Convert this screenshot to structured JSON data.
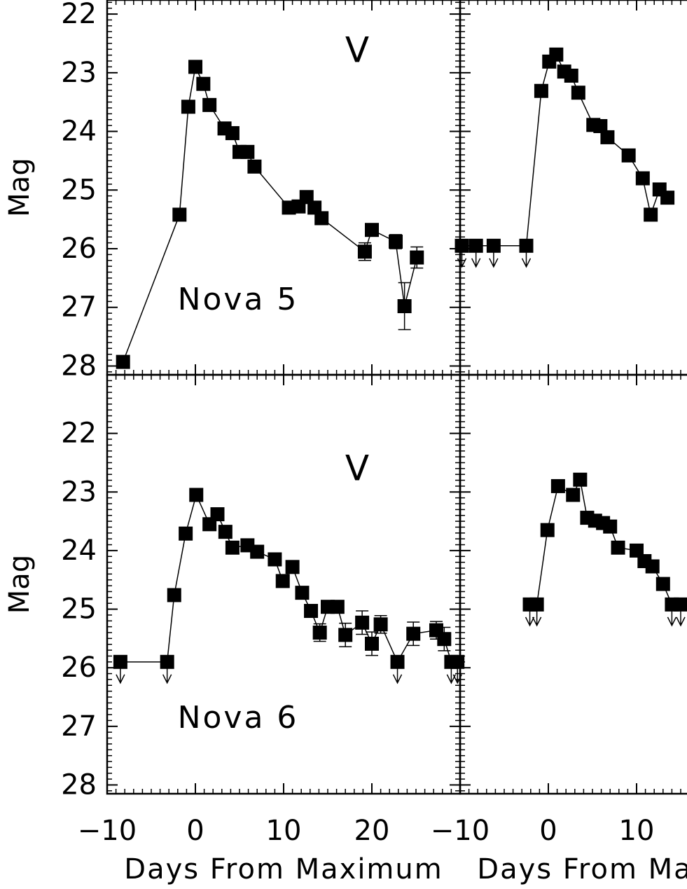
{
  "chart_data": [
    {
      "type": "line",
      "label": "Nova 5",
      "band": "V",
      "ylabel": "Mag",
      "color": "#000000",
      "x": [
        -8.2,
        -1.8,
        -0.8,
        0.0,
        0.9,
        1.6,
        3.3,
        4.2,
        5.0,
        5.9,
        6.7,
        10.6,
        11.7,
        12.6,
        13.5,
        14.3,
        19.2,
        20.0,
        22.7,
        23.7,
        25.1
      ],
      "values": [
        27.93,
        25.42,
        23.58,
        22.9,
        23.19,
        23.55,
        23.95,
        24.03,
        24.35,
        24.35,
        24.6,
        25.3,
        25.28,
        25.12,
        25.3,
        25.48,
        26.05,
        25.68,
        25.88,
        26.98,
        26.15
      ],
      "errors": [
        null,
        null,
        null,
        null,
        null,
        null,
        null,
        null,
        null,
        null,
        null,
        null,
        null,
        null,
        null,
        null,
        0.15,
        null,
        0.12,
        0.4,
        0.18
      ],
      "upper_limits": [
        false,
        false,
        false,
        false,
        false,
        false,
        false,
        false,
        false,
        false,
        false,
        false,
        false,
        false,
        false,
        false,
        false,
        false,
        false,
        false,
        false
      ],
      "xlim": [
        -10,
        30
      ],
      "ylim": [
        28.15,
        21.76
      ],
      "yticks": [
        22,
        23,
        24,
        25,
        26,
        27,
        28
      ],
      "xminor": 1,
      "yminor": 0.1
    },
    {
      "type": "line",
      "color": "#000000",
      "x": [
        -9.8,
        -8.2,
        -6.2,
        -2.5,
        -0.8,
        0.1,
        0.9,
        1.8,
        2.6,
        3.4,
        5.1,
        5.9,
        6.7,
        9.1,
        10.7,
        11.6,
        12.6,
        13.5
      ],
      "values": [
        25.95,
        25.95,
        25.95,
        25.95,
        23.31,
        22.81,
        22.69,
        22.98,
        23.05,
        23.34,
        23.89,
        23.91,
        24.1,
        24.41,
        24.8,
        25.42,
        24.99,
        25.13
      ],
      "errors": [
        null,
        null,
        null,
        null,
        null,
        null,
        null,
        null,
        null,
        null,
        null,
        null,
        null,
        null,
        null,
        null,
        null,
        null
      ],
      "upper_limits": [
        true,
        true,
        true,
        true,
        false,
        false,
        false,
        false,
        false,
        false,
        false,
        false,
        false,
        false,
        false,
        false,
        false,
        false
      ],
      "xlim": [
        -10,
        30
      ],
      "ylim": [
        28.15,
        21.76
      ],
      "xminor": 1,
      "yminor": 0.1
    },
    {
      "type": "line",
      "label": "Nova 6",
      "band": "V",
      "ylabel": "Mag",
      "xlabel": "Days From Maximum",
      "color": "#000000",
      "x": [
        -8.5,
        -3.2,
        -2.4,
        -1.1,
        0.1,
        1.6,
        2.5,
        3.4,
        4.2,
        5.9,
        7.0,
        9.0,
        9.9,
        11.0,
        12.1,
        13.1,
        14.1,
        15.0,
        16.1,
        17.0,
        18.9,
        20.0,
        21.0,
        22.9,
        24.7,
        27.3,
        28.2,
        29.0,
        29.7
      ],
      "values": [
        25.9,
        25.9,
        24.76,
        23.71,
        23.05,
        23.55,
        23.38,
        23.68,
        23.95,
        23.91,
        24.02,
        24.15,
        24.52,
        24.28,
        24.72,
        25.03,
        25.4,
        24.96,
        24.96,
        25.44,
        25.23,
        25.59,
        25.26,
        25.9,
        25.42,
        25.36,
        25.51,
        25.9,
        25.9
      ],
      "errors": [
        null,
        null,
        null,
        null,
        null,
        null,
        null,
        null,
        null,
        null,
        null,
        null,
        null,
        null,
        null,
        null,
        0.15,
        0.1,
        0.1,
        0.2,
        0.2,
        0.2,
        0.15,
        null,
        0.2,
        0.15,
        0.2,
        null,
        null
      ],
      "upper_limits": [
        true,
        true,
        false,
        false,
        false,
        false,
        false,
        false,
        false,
        false,
        false,
        false,
        false,
        false,
        false,
        false,
        false,
        false,
        false,
        false,
        false,
        false,
        false,
        true,
        false,
        false,
        false,
        true,
        true
      ],
      "xlim": [
        -10,
        30
      ],
      "ylim": [
        28.15,
        21.0
      ],
      "xticks": [
        {
          "value": -10,
          "label": "−10"
        },
        0,
        10,
        20
      ],
      "yticks": [
        22,
        23,
        24,
        25,
        26,
        27,
        28
      ],
      "xminor": 1,
      "yminor": 0.1
    },
    {
      "type": "line",
      "xlabel": "Days From Maximum",
      "color": "#000000",
      "x": [
        -2.1,
        -1.3,
        -0.1,
        1.1,
        2.8,
        3.6,
        4.4,
        5.3,
        6.2,
        7.0,
        7.9,
        10.0,
        10.9,
        11.8,
        13.0,
        14.0,
        15.0
      ],
      "values": [
        24.92,
        24.92,
        23.65,
        22.9,
        23.05,
        22.79,
        23.44,
        23.49,
        23.53,
        23.59,
        23.95,
        24.0,
        24.18,
        24.27,
        24.57,
        24.92,
        24.92
      ],
      "errors": [
        null,
        null,
        null,
        null,
        null,
        null,
        null,
        null,
        null,
        null,
        null,
        null,
        null,
        null,
        null,
        null,
        null
      ],
      "upper_limits": [
        true,
        true,
        false,
        false,
        false,
        false,
        false,
        false,
        false,
        false,
        false,
        false,
        false,
        false,
        false,
        true,
        true
      ],
      "xlim": [
        -10,
        30
      ],
      "ylim": [
        28.15,
        21.0
      ],
      "xticks": [
        {
          "value": -10,
          "label": "−10"
        },
        0,
        10
      ],
      "xminor": 1,
      "yminor": 0.1
    }
  ]
}
